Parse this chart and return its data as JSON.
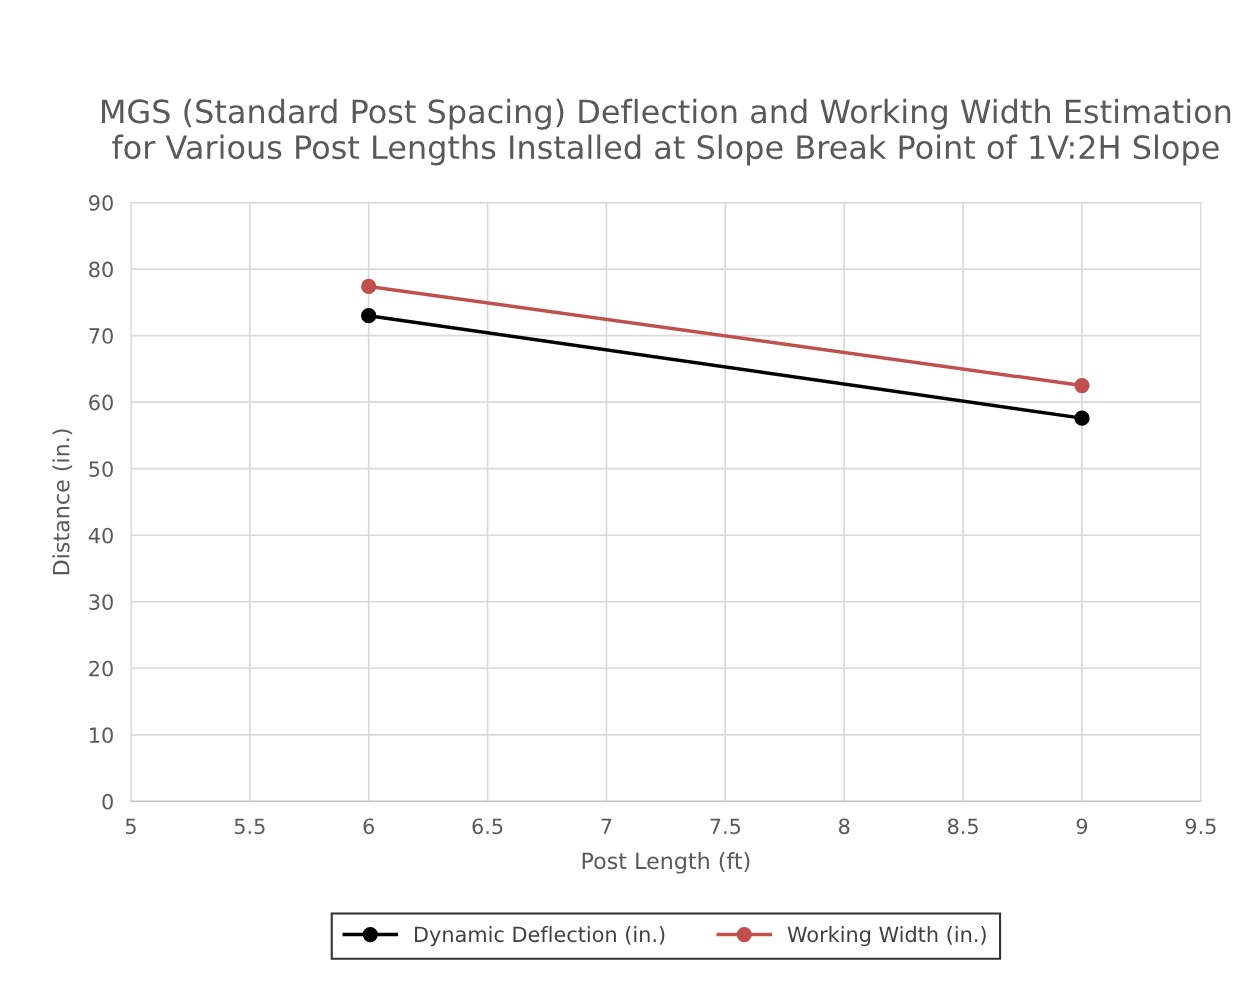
{
  "chart_data": {
    "type": "line",
    "title": "MGS (Standard Post Spacing) Deflection and Working Width Estimation for Various Post Lengths Installed at Slope Break Point of 1V:2H Slope",
    "xlabel": "Post Length (ft)",
    "ylabel": "Distance (in.)",
    "x": [
      6,
      9
    ],
    "series": [
      {
        "name": "Dynamic Deflection (in.)",
        "color": "#000000",
        "values": [
          73.0,
          57.6
        ]
      },
      {
        "name": "Working Width (in.)",
        "color": "#c0504d",
        "values": [
          77.4,
          62.5
        ]
      }
    ],
    "xlim": [
      5,
      9.5
    ],
    "xticks": [
      5,
      5.5,
      6,
      6.5,
      7,
      7.5,
      8,
      8.5,
      9,
      9.5
    ],
    "ylim": [
      0,
      90
    ],
    "yticks": [
      0,
      10,
      20,
      30,
      40,
      50,
      60,
      70,
      80,
      90
    ],
    "grid": true,
    "legend": "bottom",
    "marker": "circle",
    "line_style": "solid"
  }
}
